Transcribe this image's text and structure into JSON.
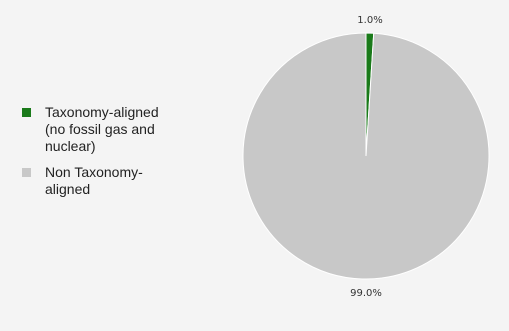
{
  "chart_data": {
    "type": "pie",
    "slices": [
      {
        "label": "Taxonomy-aligned\n(no fossil gas and\nnuclear)",
        "value": 1.0,
        "color": "#1a7a1a",
        "data_label": "1.0%"
      },
      {
        "label": "Non Taxonomy-\naligned",
        "value": 99.0,
        "color": "#c8c8c8",
        "data_label": "99.0%"
      }
    ],
    "legend_placement": "left"
  }
}
